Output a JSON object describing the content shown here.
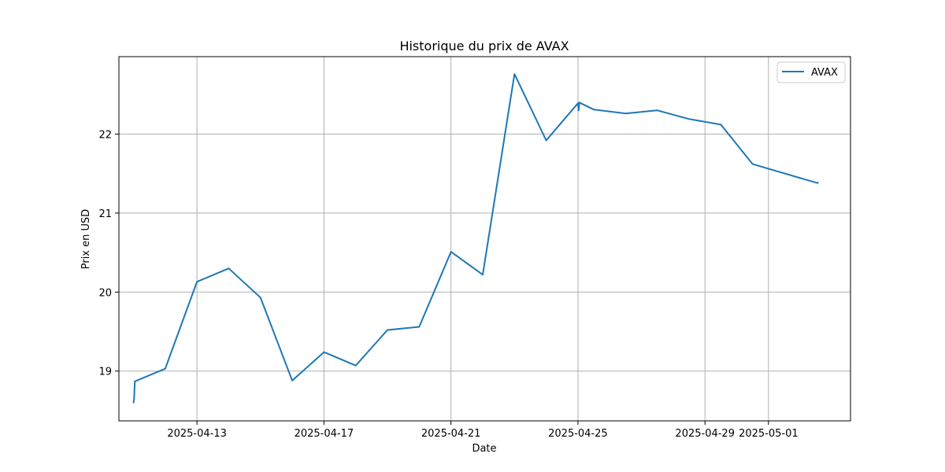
{
  "chart_data": {
    "type": "line",
    "title": "Historique du prix de AVAX",
    "xlabel": "Date",
    "ylabel": "Prix en USD",
    "grid": true,
    "legend_position": "top-right",
    "xlim": [
      "2025-04-10T13:00",
      "2025-05-03T14:00"
    ],
    "ylim": [
      18.37,
      22.98
    ],
    "x_ticks": [
      "2025-04-13",
      "2025-04-17",
      "2025-04-21",
      "2025-04-25",
      "2025-04-29",
      "2025-05-01"
    ],
    "y_ticks": [
      19,
      20,
      21,
      22
    ],
    "series": [
      {
        "name": "AVAX",
        "color": "#1f77b4",
        "points": [
          [
            "2025-04-11T00:00",
            18.6
          ],
          [
            "2025-04-11T00:30",
            18.65
          ],
          [
            "2025-04-11T01:00",
            18.87
          ],
          [
            "2025-04-12T00:00",
            19.03
          ],
          [
            "2025-04-13T00:00",
            20.13
          ],
          [
            "2025-04-14T00:00",
            20.3
          ],
          [
            "2025-04-15T00:00",
            19.93
          ],
          [
            "2025-04-16T00:00",
            18.88
          ],
          [
            "2025-04-17T00:00",
            19.24
          ],
          [
            "2025-04-18T00:00",
            19.07
          ],
          [
            "2025-04-19T00:00",
            19.52
          ],
          [
            "2025-04-20T00:00",
            19.56
          ],
          [
            "2025-04-21T00:00",
            20.51
          ],
          [
            "2025-04-22T00:00",
            20.22
          ],
          [
            "2025-04-23T00:00",
            22.76
          ],
          [
            "2025-04-24T00:00",
            21.92
          ],
          [
            "2025-04-25T00:00",
            22.39
          ],
          [
            "2025-04-25T00:30",
            22.3
          ],
          [
            "2025-04-25T01:00",
            22.4
          ],
          [
            "2025-04-25T12:00",
            22.31
          ],
          [
            "2025-04-26T12:00",
            22.26
          ],
          [
            "2025-04-27T12:00",
            22.3
          ],
          [
            "2025-04-28T12:00",
            22.19
          ],
          [
            "2025-04-29T12:00",
            22.12
          ],
          [
            "2025-04-30T12:00",
            21.62
          ],
          [
            "2025-05-02T13:00",
            21.38
          ],
          [
            "2025-05-02T13:30",
            21.39
          ]
        ]
      }
    ]
  }
}
